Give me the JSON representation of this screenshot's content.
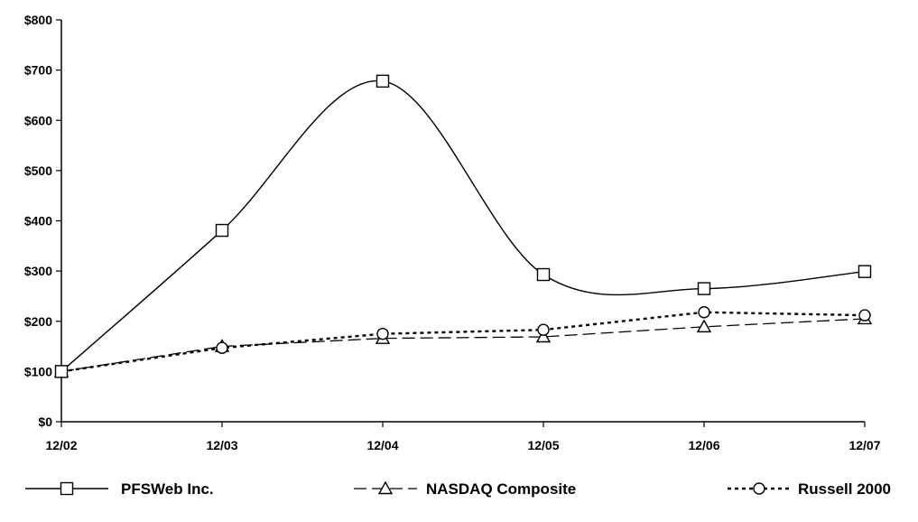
{
  "chart_data": {
    "type": "line",
    "title": "",
    "xlabel": "",
    "ylabel": "",
    "categories": [
      "12/02",
      "12/03",
      "12/04",
      "12/05",
      "12/06",
      "12/07"
    ],
    "ylim": [
      0,
      800
    ],
    "yticks": [
      "$0",
      "$100",
      "$200",
      "$300",
      "$400",
      "$500",
      "$600",
      "$700",
      "$800"
    ],
    "grid": false,
    "legend_position": "bottom",
    "series": [
      {
        "name": "PFSWeb Inc.",
        "marker": "square",
        "line_style": "solid",
        "smooth": true,
        "color": "#000000",
        "values": [
          100,
          381,
          678,
          293,
          265,
          299
        ]
      },
      {
        "name": "NASDAQ Composite",
        "marker": "triangle",
        "line_style": "dashed",
        "smooth": false,
        "color": "#000000",
        "values": [
          100,
          150,
          166,
          169,
          189,
          205
        ]
      },
      {
        "name": "Russell 2000",
        "marker": "circle",
        "line_style": "dotted-bold",
        "smooth": false,
        "color": "#000000",
        "values": [
          100,
          147,
          175,
          183,
          218,
          212
        ]
      }
    ]
  }
}
